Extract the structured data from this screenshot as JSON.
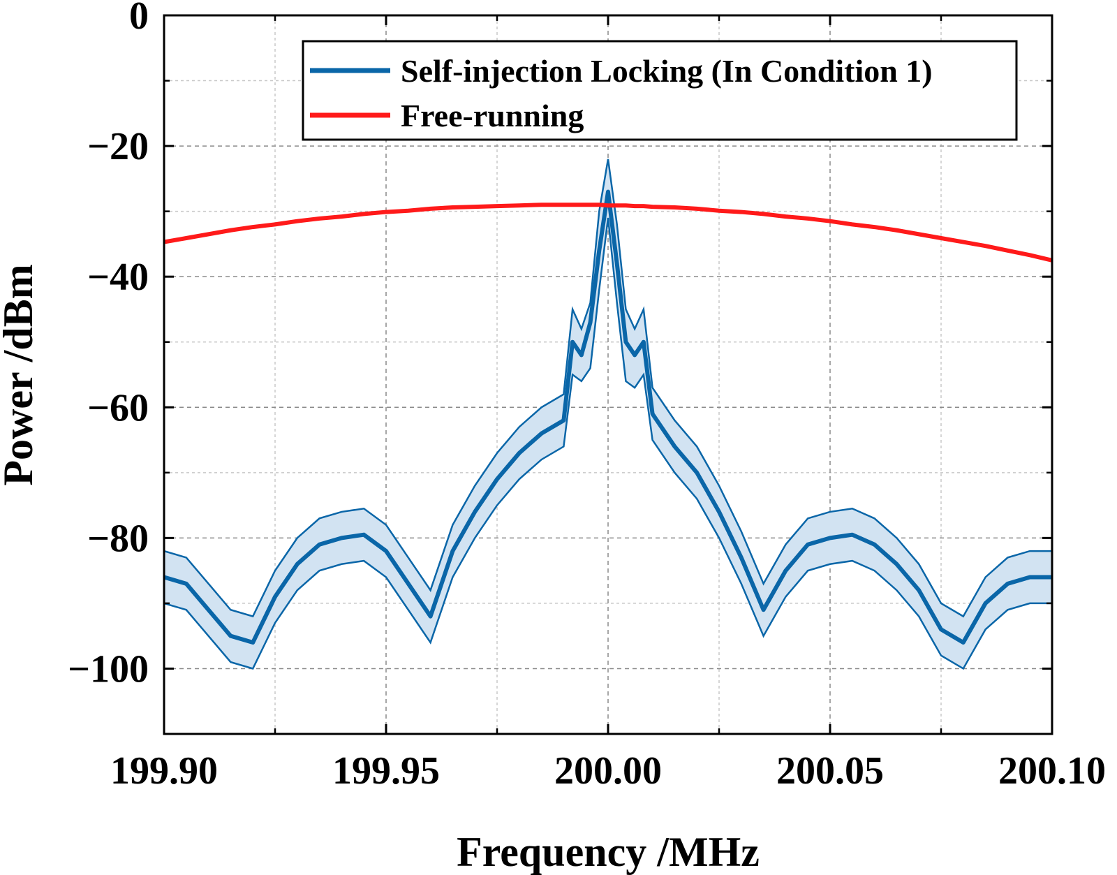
{
  "chart_data": {
    "type": "line",
    "x_label": "Frequency /MHz",
    "y_label": "Power /dBm",
    "xlim": [
      199.9,
      200.1
    ],
    "ylim": [
      -110,
      0
    ],
    "xticks": [
      {
        "value": 199.9,
        "label": "199.90"
      },
      {
        "value": 199.95,
        "label": "199.95"
      },
      {
        "value": 200,
        "label": "200.00"
      },
      {
        "value": 200.05,
        "label": "200.05"
      },
      {
        "value": 200.1,
        "label": "200.10"
      }
    ],
    "xminorticks": [
      199.925,
      199.975,
      200.025,
      200.075
    ],
    "yticks": [
      0,
      {
        "value": -20,
        "label": "−20"
      },
      {
        "value": -40,
        "label": "−40"
      },
      {
        "value": -60,
        "label": "−60"
      },
      {
        "value": -80,
        "label": "−80"
      },
      {
        "value": -100,
        "label": "−100"
      }
    ],
    "yminorticks": [
      -10,
      -30,
      -50,
      -70,
      -90
    ],
    "grid": true,
    "legend": "upper right",
    "x": [
      199.9,
      199.905,
      199.91,
      199.915,
      199.92,
      199.925,
      199.93,
      199.935,
      199.94,
      199.945,
      199.95,
      199.955,
      199.96,
      199.965,
      199.97,
      199.975,
      199.98,
      199.985,
      199.99,
      199.992,
      199.994,
      199.996,
      199.998,
      200,
      200.002,
      200.004,
      200.006,
      200.008,
      200.01,
      200.015,
      200.02,
      200.025,
      200.03,
      200.035,
      200.04,
      200.045,
      200.05,
      200.055,
      200.06,
      200.065,
      200.07,
      200.075,
      200.08,
      200.085,
      200.09,
      200.095,
      200.1
    ],
    "series": [
      {
        "name": "Self-injection Locking (In Condition 1)",
        "color": "#0a66a8",
        "band_color": "#d2e3f2",
        "values": [
          -86,
          -87,
          -91,
          -95,
          -96,
          -89,
          -84,
          -81,
          -80,
          -79.5,
          -82,
          -87,
          -92,
          -82,
          -76,
          -71,
          -67,
          -64,
          -62,
          -50,
          -52,
          -47,
          -36,
          -27,
          -38,
          -50,
          -52,
          -50,
          -61,
          -66,
          -70,
          -76,
          -83,
          -91,
          -85,
          -81,
          -80,
          -79.5,
          -81,
          -84,
          -88,
          -94,
          -96,
          -90,
          -87,
          -86,
          -86
        ],
        "upper": [
          -82,
          -83,
          -87,
          -91,
          -92,
          -85,
          -80,
          -77,
          -76,
          -75.5,
          -78,
          -83,
          -88,
          -78,
          -72,
          -67,
          -63,
          -60,
          -58,
          -45,
          -48,
          -44,
          -30,
          -22,
          -32,
          -45,
          -48,
          -45,
          -57,
          -62,
          -66,
          -72,
          -79,
          -87,
          -81,
          -77,
          -76,
          -75.5,
          -77,
          -80,
          -84,
          -90,
          -92,
          -86,
          -83,
          -82,
          -82
        ],
        "lower": [
          -90,
          -91,
          -95,
          -99,
          -100,
          -93,
          -88,
          -85,
          -84,
          -83.5,
          -86,
          -91,
          -96,
          -86,
          -80,
          -75,
          -71,
          -68,
          -66,
          -55,
          -56,
          -54,
          -42,
          -31,
          -44,
          -56,
          -57,
          -55,
          -65,
          -70,
          -74,
          -80,
          -87,
          -95,
          -89,
          -85,
          -84,
          -83.5,
          -85,
          -88,
          -92,
          -98,
          -100,
          -94,
          -91,
          -90,
          -90
        ]
      },
      {
        "name": "Free-running",
        "color": "#ff1a1a",
        "values": [
          -34.7,
          -34.1,
          -33.5,
          -32.9,
          -32.4,
          -32.0,
          -31.5,
          -31.1,
          -30.8,
          -30.4,
          -30.1,
          -29.9,
          -29.6,
          -29.4,
          -29.3,
          -29.2,
          -29.1,
          -29.0,
          -29.0,
          -29.0,
          -29.0,
          -29.0,
          -29.0,
          -29.1,
          -29.1,
          -29.1,
          -29.2,
          -29.2,
          -29.3,
          -29.4,
          -29.6,
          -29.9,
          -30.1,
          -30.4,
          -30.8,
          -31.1,
          -31.5,
          -32.0,
          -32.4,
          -32.9,
          -33.5,
          -34.1,
          -34.7,
          -35.3,
          -36.0,
          -36.7,
          -37.5
        ]
      }
    ]
  }
}
